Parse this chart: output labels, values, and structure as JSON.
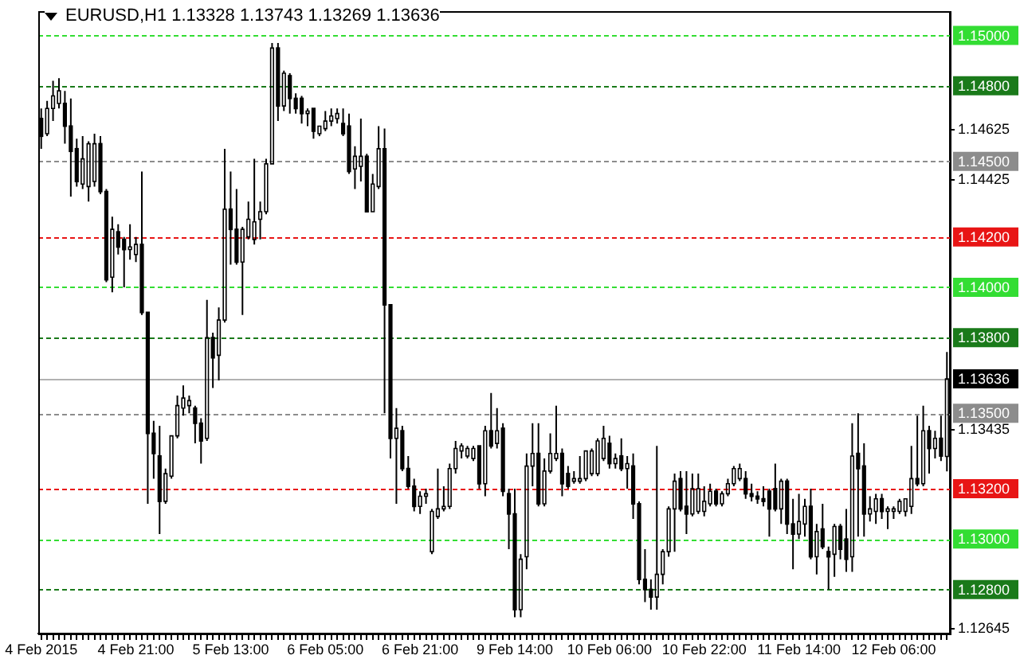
{
  "chart_data": {
    "type": "candlestick",
    "title": "EURUSD,H1 1.13328 1.13743 1.13269 1.13636",
    "categories": [
      "4 Feb 2015",
      null,
      null,
      null,
      null,
      null,
      null,
      null,
      null,
      null,
      null,
      null,
      null,
      null,
      null,
      null,
      "4 Feb 21:00",
      null,
      null,
      null,
      null,
      null,
      null,
      null,
      null,
      null,
      null,
      null,
      null,
      null,
      null,
      null,
      "5 Feb 13:00",
      null,
      null,
      null,
      null,
      null,
      null,
      null,
      null,
      null,
      null,
      null,
      null,
      null,
      null,
      null,
      "6 Feb 05:00",
      null,
      null,
      null,
      null,
      null,
      null,
      null,
      null,
      null,
      null,
      null,
      null,
      null,
      null,
      null,
      "6 Feb 21:00",
      null,
      null,
      null,
      null,
      null,
      null,
      null,
      null,
      null,
      null,
      null,
      null,
      null,
      null,
      null,
      "9 Feb 14:00",
      null,
      null,
      null,
      null,
      null,
      null,
      null,
      null,
      null,
      null,
      null,
      null,
      null,
      null,
      null,
      "10 Feb 06:00",
      null,
      null,
      null,
      null,
      null,
      null,
      null,
      null,
      null,
      null,
      null,
      null,
      null,
      null,
      null,
      "10 Feb 22:00",
      null,
      null,
      null,
      null,
      null,
      null,
      null,
      null,
      null,
      null,
      null,
      null,
      null,
      null,
      null,
      "11 Feb 14:00",
      null,
      null,
      null,
      null,
      null,
      null,
      null,
      null,
      null,
      null,
      null,
      null,
      null,
      null,
      null,
      "12 Feb 06:00",
      null,
      null,
      null,
      null,
      null,
      null,
      null,
      null,
      null
    ],
    "ohlc": [
      [
        1.1467,
        1.1471,
        1.1455,
        1.146
      ],
      [
        1.1461,
        1.1474,
        1.146,
        1.1471
      ],
      [
        1.1471,
        1.1482,
        1.1466,
        1.1476
      ],
      [
        1.1473,
        1.1483,
        1.1471,
        1.1478
      ],
      [
        1.1473,
        1.1478,
        1.1457,
        1.1464
      ],
      [
        1.1464,
        1.1475,
        1.1436,
        1.1454
      ],
      [
        1.1455,
        1.1459,
        1.144,
        1.1442
      ],
      [
        1.1441,
        1.146,
        1.1439,
        1.1451
      ],
      [
        1.144,
        1.1458,
        1.1434,
        1.1457
      ],
      [
        1.1442,
        1.1461,
        1.144,
        1.1457
      ],
      [
        1.1457,
        1.146,
        1.1437,
        1.1438
      ],
      [
        1.1438,
        1.1439,
        1.1402,
        1.1403
      ],
      [
        1.1404,
        1.1428,
        1.1398,
        1.1423
      ],
      [
        1.1422,
        1.1425,
        1.1413,
        1.1416
      ],
      [
        1.1419,
        1.142,
        1.14,
        1.1415
      ],
      [
        1.1415,
        1.1425,
        1.1411,
        1.1416
      ],
      [
        1.1413,
        1.142,
        1.141,
        1.1417
      ],
      [
        1.1417,
        1.1446,
        1.1389,
        1.139
      ],
      [
        1.139,
        1.139,
        1.1314,
        1.1342
      ],
      [
        1.1342,
        1.1347,
        1.1324,
        1.1334
      ],
      [
        1.1333,
        1.1345,
        1.1302,
        1.1315
      ],
      [
        1.1315,
        1.1328,
        1.1314,
        1.1326
      ],
      [
        1.1325,
        1.1341,
        1.1324,
        1.1341
      ],
      [
        1.1341,
        1.1357,
        1.134,
        1.1353
      ],
      [
        1.1352,
        1.1361,
        1.1349,
        1.1356
      ],
      [
        1.1353,
        1.1357,
        1.135,
        1.1355
      ],
      [
        1.1352,
        1.1353,
        1.1338,
        1.1346
      ],
      [
        1.1346,
        1.1348,
        1.133,
        1.1339
      ],
      [
        1.134,
        1.1395,
        1.1339,
        1.138
      ],
      [
        1.138,
        1.1382,
        1.136,
        1.1372
      ],
      [
        1.1373,
        1.1392,
        1.1363,
        1.1387
      ],
      [
        1.1387,
        1.1455,
        1.1386,
        1.1431
      ],
      [
        1.1431,
        1.1446,
        1.1409,
        1.1423
      ],
      [
        1.1423,
        1.1439,
        1.1409,
        1.141
      ],
      [
        1.141,
        1.1424,
        1.1389,
        1.1423
      ],
      [
        1.142,
        1.1434,
        1.1419,
        1.1427
      ],
      [
        1.1419,
        1.1451,
        1.1417,
        1.1426
      ],
      [
        1.1427,
        1.1434,
        1.1419,
        1.143
      ],
      [
        1.143,
        1.1451,
        1.1429,
        1.1449
      ],
      [
        1.1449,
        1.1497,
        1.1449,
        1.1495
      ],
      [
        1.1495,
        1.1497,
        1.1466,
        1.1472
      ],
      [
        1.1472,
        1.1486,
        1.147,
        1.1485
      ],
      [
        1.1484,
        1.1485,
        1.1469,
        1.1475
      ],
      [
        1.1475,
        1.1477,
        1.1469,
        1.1471
      ],
      [
        1.1475,
        1.1476,
        1.1465,
        1.1469
      ],
      [
        1.1469,
        1.1471,
        1.1464,
        1.147
      ],
      [
        1.1471,
        1.1471,
        1.1459,
        1.1462
      ],
      [
        1.1461,
        1.1464,
        1.146,
        1.1464
      ],
      [
        1.1463,
        1.147,
        1.1462,
        1.1466
      ],
      [
        1.1466,
        1.1471,
        1.1464,
        1.1468
      ],
      [
        1.1467,
        1.1471,
        1.1465,
        1.1469
      ],
      [
        1.1465,
        1.1471,
        1.146,
        1.1461
      ],
      [
        1.1464,
        1.1469,
        1.1445,
        1.1446
      ],
      [
        1.1447,
        1.1456,
        1.1439,
        1.1452
      ],
      [
        1.1448,
        1.1467,
        1.1442,
        1.1452
      ],
      [
        1.1452,
        1.1453,
        1.143,
        1.143
      ],
      [
        1.143,
        1.1445,
        1.143,
        1.1441
      ],
      [
        1.144,
        1.1464,
        1.1439,
        1.1455
      ],
      [
        1.1455,
        1.1463,
        1.135,
        1.1393
      ],
      [
        1.1393,
        1.1393,
        1.1332,
        1.134
      ],
      [
        1.134,
        1.1352,
        1.1314,
        1.1344
      ],
      [
        1.1343,
        1.1345,
        1.1327,
        1.1328
      ],
      [
        1.1328,
        1.1333,
        1.132,
        1.1321
      ],
      [
        1.1321,
        1.1324,
        1.1311,
        1.1313
      ],
      [
        1.1313,
        1.1319,
        1.131,
        1.1317
      ],
      [
        1.1317,
        1.132,
        1.1314,
        1.1318
      ],
      [
        1.1295,
        1.1312,
        1.1294,
        1.1311
      ],
      [
        1.1309,
        1.1328,
        1.1308,
        1.1312
      ],
      [
        1.1312,
        1.1321,
        1.1311,
        1.1313
      ],
      [
        1.1313,
        1.133,
        1.1312,
        1.1328
      ],
      [
        1.1328,
        1.1339,
        1.1326,
        1.1336
      ],
      [
        1.1335,
        1.1338,
        1.1332,
        1.1337
      ],
      [
        1.1333,
        1.1337,
        1.1332,
        1.1336
      ],
      [
        1.1332,
        1.1337,
        1.1331,
        1.1336
      ],
      [
        1.1337,
        1.1337,
        1.132,
        1.1322
      ],
      [
        1.1322,
        1.1345,
        1.1317,
        1.1343
      ],
      [
        1.1343,
        1.1358,
        1.1336,
        1.1337
      ],
      [
        1.1338,
        1.1352,
        1.1336,
        1.1343
      ],
      [
        1.1344,
        1.1346,
        1.1317,
        1.1319
      ],
      [
        1.1318,
        1.132,
        1.1296,
        1.131
      ],
      [
        1.131,
        1.132,
        1.1269,
        1.1272
      ],
      [
        1.1272,
        1.1294,
        1.1269,
        1.1292
      ],
      [
        1.1293,
        1.1334,
        1.1288,
        1.1329
      ],
      [
        1.1329,
        1.1346,
        1.1321,
        1.1334
      ],
      [
        1.1334,
        1.1346,
        1.1313,
        1.1314
      ],
      [
        1.1314,
        1.1332,
        1.1313,
        1.1327
      ],
      [
        1.1327,
        1.1342,
        1.1326,
        1.1334
      ],
      [
        1.1332,
        1.1353,
        1.1331,
        1.1334
      ],
      [
        1.1334,
        1.1336,
        1.1317,
        1.1322
      ],
      [
        1.1326,
        1.1329,
        1.132,
        1.1321
      ],
      [
        1.1323,
        1.1327,
        1.1322,
        1.1324
      ],
      [
        1.1323,
        1.1333,
        1.1322,
        1.1324
      ],
      [
        1.1324,
        1.1335,
        1.1323,
        1.1335
      ],
      [
        1.1326,
        1.1336,
        1.1325,
        1.1335
      ],
      [
        1.1326,
        1.134,
        1.1325,
        1.1339
      ],
      [
        1.1332,
        1.1345,
        1.1331,
        1.134
      ],
      [
        1.1338,
        1.1341,
        1.1328,
        1.133
      ],
      [
        1.133,
        1.1334,
        1.1328,
        1.1332
      ],
      [
        1.1333,
        1.134,
        1.1327,
        1.1328
      ],
      [
        1.1328,
        1.1333,
        1.132,
        1.133
      ],
      [
        1.1329,
        1.1334,
        1.1308,
        1.1314
      ],
      [
        1.1314,
        1.1315,
        1.1282,
        1.1284
      ],
      [
        1.1284,
        1.1296,
        1.1275,
        1.128
      ],
      [
        1.128,
        1.1284,
        1.1272,
        1.1277
      ],
      [
        1.1277,
        1.1337,
        1.1272,
        1.1286
      ],
      [
        1.1286,
        1.1296,
        1.1282,
        1.1295
      ],
      [
        1.1295,
        1.1313,
        1.1293,
        1.1312
      ],
      [
        1.1312,
        1.1326,
        1.1295,
        1.1323
      ],
      [
        1.1324,
        1.1327,
        1.1311,
        1.1312
      ],
      [
        1.1313,
        1.1327,
        1.1302,
        1.131
      ],
      [
        1.131,
        1.1326,
        1.1309,
        1.132
      ],
      [
        1.1311,
        1.1326,
        1.131,
        1.132
      ],
      [
        1.1311,
        1.1321,
        1.1309,
        1.1315
      ],
      [
        1.1314,
        1.1322,
        1.1313,
        1.1319
      ],
      [
        1.1319,
        1.132,
        1.1313,
        1.1314
      ],
      [
        1.1314,
        1.1319,
        1.1313,
        1.1318
      ],
      [
        1.1318,
        1.1324,
        1.1317,
        1.1322
      ],
      [
        1.1322,
        1.1329,
        1.1321,
        1.1328
      ],
      [
        1.1324,
        1.133,
        1.1323,
        1.1328
      ],
      [
        1.1324,
        1.1327,
        1.1316,
        1.1318
      ],
      [
        1.1318,
        1.1322,
        1.1315,
        1.1317
      ],
      [
        1.1317,
        1.1319,
        1.1314,
        1.1316
      ],
      [
        1.1316,
        1.1321,
        1.1313,
        1.1315
      ],
      [
        1.1319,
        1.132,
        1.1301,
        1.1312
      ],
      [
        1.132,
        1.133,
        1.1311,
        1.1312
      ],
      [
        1.1312,
        1.1324,
        1.1306,
        1.1323
      ],
      [
        1.1323,
        1.1324,
        1.1302,
        1.1306
      ],
      [
        1.1306,
        1.1316,
        1.1288,
        1.1302
      ],
      [
        1.1302,
        1.1318,
        1.13,
        1.1307
      ],
      [
        1.1306,
        1.1316,
        1.1301,
        1.1313
      ],
      [
        1.1313,
        1.132,
        1.1292,
        1.1293
      ],
      [
        1.1293,
        1.1306,
        1.1286,
        1.1303
      ],
      [
        1.1304,
        1.1314,
        1.1296,
        1.1297
      ],
      [
        1.1295,
        1.1297,
        1.128,
        1.1293
      ],
      [
        1.1294,
        1.1306,
        1.1285,
        1.1305
      ],
      [
        1.1305,
        1.1306,
        1.1292,
        1.1296
      ],
      [
        1.13,
        1.1312,
        1.1287,
        1.1292
      ],
      [
        1.1293,
        1.1346,
        1.1287,
        1.1333
      ],
      [
        1.1334,
        1.135,
        1.1301,
        1.1328
      ],
      [
        1.1329,
        1.1338,
        1.1301,
        1.131
      ],
      [
        1.131,
        1.1317,
        1.1307,
        1.1312
      ],
      [
        1.1311,
        1.1318,
        1.1306,
        1.1316
      ],
      [
        1.1316,
        1.1318,
        1.1308,
        1.1311
      ],
      [
        1.1311,
        1.1313,
        1.1304,
        1.1312
      ],
      [
        1.1311,
        1.1313,
        1.1308,
        1.1312
      ],
      [
        1.1311,
        1.1316,
        1.131,
        1.1315
      ],
      [
        1.1311,
        1.1316,
        1.1309,
        1.1316
      ],
      [
        1.1313,
        1.1337,
        1.131,
        1.1324
      ],
      [
        1.1324,
        1.1349,
        1.1321,
        1.1322
      ],
      [
        1.1322,
        1.1353,
        1.1321,
        1.1343
      ],
      [
        1.1343,
        1.1345,
        1.1326,
        1.1336
      ],
      [
        1.1336,
        1.1343,
        1.1332,
        1.134
      ],
      [
        1.134,
        1.1349,
        1.1331,
        1.1333
      ],
      [
        1.13328,
        1.13743,
        1.13269,
        1.13636
      ]
    ],
    "ylim": [
      1.12625,
      1.15094
    ],
    "yticks": [
      1.14625,
      1.14425,
      1.13435,
      1.12645
    ],
    "grid": false,
    "legend": false,
    "ref_lines": [
      {
        "axis": "y",
        "value": 1.15,
        "label": "1.15000",
        "color": "#33dd33",
        "line_style": "dashed"
      },
      {
        "axis": "y",
        "value": 1.148,
        "label": "1.14800",
        "color": "#1a7a1a",
        "line_style": "dashed"
      },
      {
        "axis": "y",
        "value": 1.145,
        "label": "1.14500",
        "color": "#8c8c8c",
        "line_style": "dashed"
      },
      {
        "axis": "y",
        "value": 1.142,
        "label": "1.14200",
        "color": "#e81515",
        "line_style": "dashed"
      },
      {
        "axis": "y",
        "value": 1.14,
        "label": "1.14000",
        "color": "#33dd33",
        "line_style": "dashed"
      },
      {
        "axis": "y",
        "value": 1.138,
        "label": "1.13800",
        "color": "#1a7a1a",
        "line_style": "dashed"
      },
      {
        "axis": "y",
        "value": 1.13636,
        "label": "1.13636",
        "color": "#000000",
        "line_style": "solid"
      },
      {
        "axis": "y",
        "value": 1.135,
        "label": "1.13500",
        "color": "#8c8c8c",
        "line_style": "dashed"
      },
      {
        "axis": "y",
        "value": 1.132,
        "label": "1.13200",
        "color": "#e81515",
        "line_style": "dashed"
      },
      {
        "axis": "y",
        "value": 1.13,
        "label": "1.13000",
        "color": "#33dd33",
        "line_style": "dashed"
      },
      {
        "axis": "y",
        "value": 1.128,
        "label": "1.12800",
        "color": "#1a7a1a",
        "line_style": "dashed"
      }
    ]
  }
}
